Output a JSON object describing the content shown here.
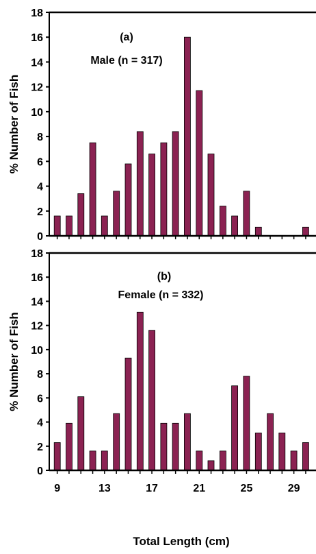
{
  "figure": {
    "xlabel": "Total Length (cm)",
    "bar_color": "#8b2252",
    "bar_outline": "#000000"
  },
  "chart_data": [
    {
      "type": "bar",
      "panel_label": "(a)",
      "subtitle": "Male (n = 317)",
      "ylabel": "% Number of Fish",
      "xlabel": "",
      "ylim": [
        0,
        18
      ],
      "yticks": [
        0,
        2,
        4,
        6,
        8,
        10,
        12,
        14,
        16,
        18
      ],
      "x_tick_labels_shown": false,
      "grid": false,
      "categories": [
        9,
        10,
        11,
        12,
        13,
        14,
        15,
        16,
        17,
        18,
        19,
        20,
        21,
        22,
        23,
        24,
        25,
        26,
        27,
        28,
        29,
        30
      ],
      "values": [
        1.6,
        1.6,
        3.4,
        7.5,
        1.6,
        3.6,
        5.8,
        8.4,
        6.6,
        7.5,
        8.4,
        16.0,
        11.7,
        6.6,
        2.4,
        1.6,
        3.6,
        0.7,
        0,
        0,
        0,
        0.7
      ]
    },
    {
      "type": "bar",
      "panel_label": "(b)",
      "subtitle": "Female (n = 332)",
      "ylabel": "% Number of Fish",
      "xlabel": "Total Length (cm)",
      "ylim": [
        0,
        18
      ],
      "yticks": [
        0,
        2,
        4,
        6,
        8,
        10,
        12,
        14,
        16,
        18
      ],
      "x_tick_labels": [
        9,
        13,
        17,
        21,
        25,
        29
      ],
      "x_tick_labels_shown": true,
      "grid": false,
      "categories": [
        9,
        10,
        11,
        12,
        13,
        14,
        15,
        16,
        17,
        18,
        19,
        20,
        21,
        22,
        23,
        24,
        25,
        26,
        27,
        28,
        29,
        30
      ],
      "values": [
        2.3,
        3.9,
        6.1,
        1.6,
        1.6,
        4.7,
        9.3,
        13.1,
        11.6,
        3.9,
        3.9,
        4.7,
        1.6,
        0.8,
        1.6,
        7.0,
        7.8,
        3.1,
        4.7,
        3.1,
        1.6,
        2.3
      ]
    }
  ]
}
